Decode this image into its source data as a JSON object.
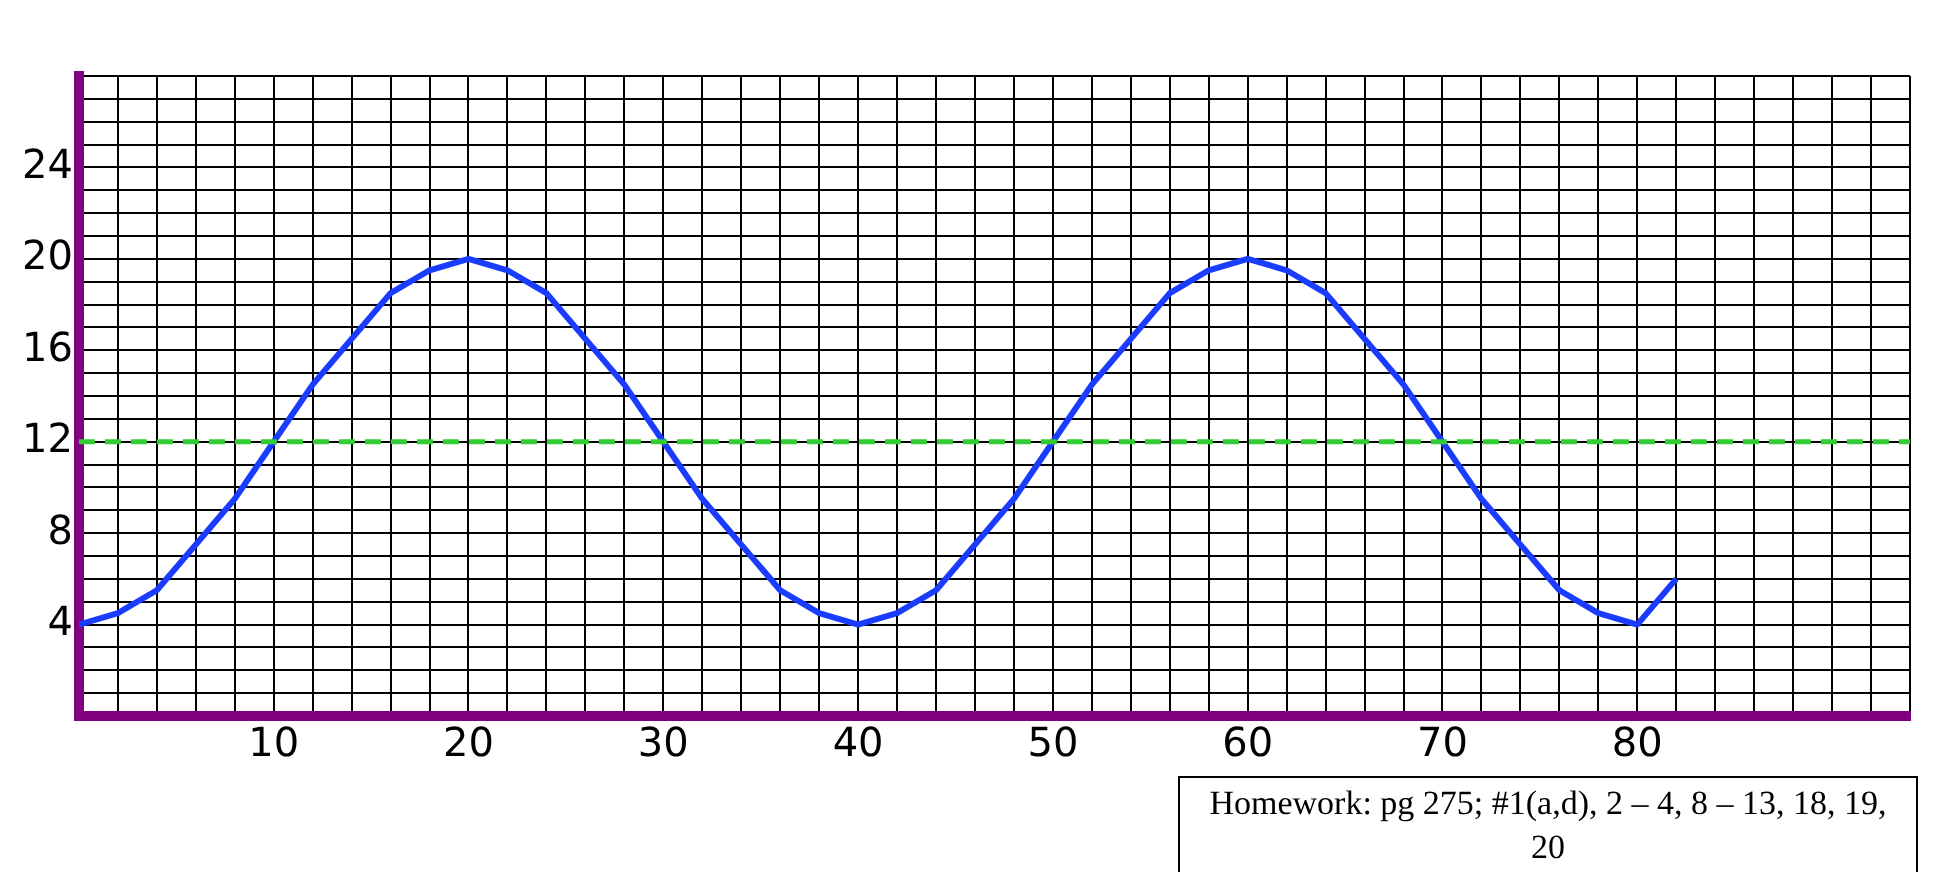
{
  "chart_data": {
    "type": "line",
    "x": [
      0,
      2,
      4,
      6,
      8,
      10,
      12,
      14,
      16,
      18,
      20,
      22,
      24,
      26,
      28,
      30,
      32,
      34,
      36,
      38,
      40,
      42,
      44,
      46,
      48,
      50,
      52,
      54,
      56,
      58,
      60,
      62,
      64,
      66,
      68,
      70,
      72,
      74,
      76,
      78,
      80,
      82
    ],
    "series": [
      {
        "color": "#1a3cff",
        "values": [
          4,
          4.5,
          5.5,
          7.5,
          9.5,
          12,
          14.5,
          16.5,
          18.5,
          19.5,
          20,
          19.5,
          18.5,
          16.5,
          14.5,
          12,
          9.5,
          7.5,
          5.5,
          4.5,
          4,
          4.5,
          5.5,
          7.5,
          9.5,
          12,
          14.5,
          16.5,
          18.5,
          19.5,
          20,
          19.5,
          18.5,
          16.5,
          14.5,
          12,
          9.5,
          7.5,
          5.5,
          4.5,
          4,
          6
        ]
      }
    ],
    "xlim": [
      0,
      94
    ],
    "xticks": [
      {
        "value": 0,
        "label": null
      },
      {
        "value": 2,
        "label": null
      },
      {
        "value": 4,
        "label": null
      },
      {
        "value": 6,
        "label": null
      },
      {
        "value": 8,
        "label": null
      },
      10,
      {
        "value": 12,
        "label": null
      },
      {
        "value": 14,
        "label": null
      },
      {
        "value": 16,
        "label": null
      },
      {
        "value": 18,
        "label": null
      },
      20,
      {
        "value": 22,
        "label": null
      },
      {
        "value": 24,
        "label": null
      },
      {
        "value": 26,
        "label": null
      },
      {
        "value": 28,
        "label": null
      },
      30,
      {
        "value": 32,
        "label": null
      },
      {
        "value": 34,
        "label": null
      },
      {
        "value": 36,
        "label": null
      },
      {
        "value": 38,
        "label": null
      },
      40,
      {
        "value": 42,
        "label": null
      },
      {
        "value": 44,
        "label": null
      },
      {
        "value": 46,
        "label": null
      },
      {
        "value": 48,
        "label": null
      },
      50,
      {
        "value": 52,
        "label": null
      },
      {
        "value": 54,
        "label": null
      },
      {
        "value": 56,
        "label": null
      },
      {
        "value": 58,
        "label": null
      },
      60,
      {
        "value": 62,
        "label": null
      },
      {
        "value": 64,
        "label": null
      },
      {
        "value": 66,
        "label": null
      },
      {
        "value": 68,
        "label": null
      },
      70,
      {
        "value": 72,
        "label": null
      },
      {
        "value": 74,
        "label": null
      },
      {
        "value": 76,
        "label": null
      },
      {
        "value": 78,
        "label": null
      },
      80,
      {
        "value": 82,
        "label": null
      },
      {
        "value": 84,
        "label": null
      },
      {
        "value": 86,
        "label": null
      },
      {
        "value": 88,
        "label": null
      },
      {
        "value": 90,
        "label": null
      },
      {
        "value": 92,
        "label": null
      },
      {
        "value": 94,
        "label": null
      }
    ],
    "ylim": [
      0,
      28
    ],
    "yticks": [
      {
        "value": 0,
        "label": null
      },
      {
        "value": 1,
        "label": null
      },
      {
        "value": 2,
        "label": null
      },
      {
        "value": 3,
        "label": null
      },
      4,
      {
        "value": 5,
        "label": null
      },
      {
        "value": 6,
        "label": null
      },
      {
        "value": 7,
        "label": null
      },
      8,
      {
        "value": 9,
        "label": null
      },
      {
        "value": 10,
        "label": null
      },
      {
        "value": 11,
        "label": null
      },
      12,
      {
        "value": 13,
        "label": null
      },
      {
        "value": 14,
        "label": null
      },
      {
        "value": 15,
        "label": null
      },
      16,
      {
        "value": 17,
        "label": null
      },
      {
        "value": 18,
        "label": null
      },
      {
        "value": 19,
        "label": null
      },
      20,
      {
        "value": 21,
        "label": null
      },
      {
        "value": 22,
        "label": null
      },
      {
        "value": 23,
        "label": null
      },
      24,
      {
        "value": 25,
        "label": null
      },
      {
        "value": 26,
        "label": null
      },
      {
        "value": 27,
        "label": null
      },
      {
        "value": 28,
        "label": null
      }
    ],
    "grid": true,
    "legend": false,
    "marker": "none",
    "line_style": "solid",
    "ref_lines": [
      {
        "axis": "y",
        "value": 12,
        "color": "#33cc33",
        "line_style": "dashed"
      }
    ],
    "annotations": [
      "Homework:  pg 275; #1(a,d), 2 – 4, 8 – 13, 18, 19, 20"
    ]
  }
}
